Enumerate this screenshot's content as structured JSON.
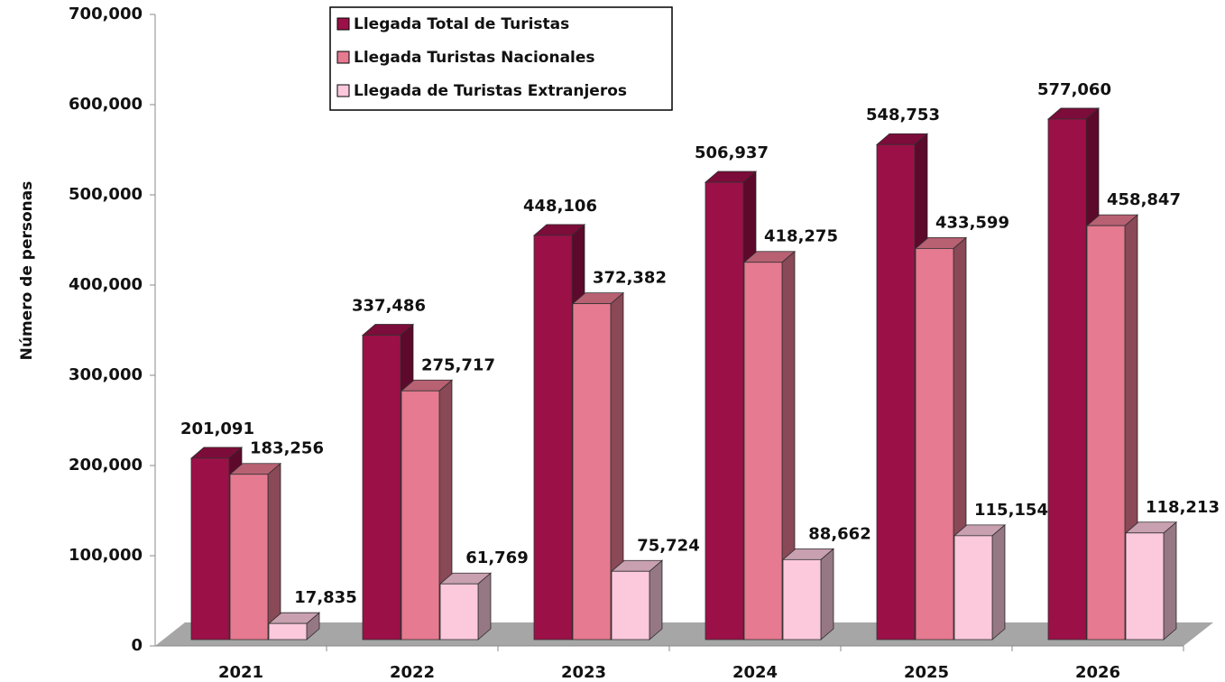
{
  "chart_data": {
    "type": "bar3d",
    "y_label": "Número de personas",
    "categories": [
      "2021",
      "2022",
      "2023",
      "2024",
      "2025",
      "2026"
    ],
    "series": [
      {
        "name": "Llegada Total de Turistas",
        "color": "#9c1048",
        "values": [
          201091,
          337486,
          448106,
          506937,
          548753,
          577060
        ],
        "value_labels": [
          "201,091",
          "337,486",
          "448,106",
          "506,937",
          "548,753",
          "577,060"
        ]
      },
      {
        "name": "Llegada  Turistas Nacionales",
        "color": "#e57a90",
        "values": [
          183256,
          275717,
          372382,
          418275,
          433599,
          458847
        ],
        "value_labels": [
          "183,256",
          "275,717",
          "372,382",
          "418,275",
          "433,599",
          "458,847"
        ]
      },
      {
        "name": "Llegada de Turistas Extranjeros",
        "color": "#fbc8dc",
        "values": [
          17835,
          61769,
          75724,
          88662,
          115154,
          118213
        ],
        "value_labels": [
          "17,835",
          "61,769",
          "75,724",
          "88,662",
          "115,154",
          "118,213"
        ]
      }
    ],
    "ylim": [
      0,
      700000
    ],
    "yticks": [
      0,
      {
        "value": 100000,
        "label": "100,000"
      },
      {
        "value": 200000,
        "label": "200,000"
      },
      {
        "value": 300000,
        "label": "300,000"
      },
      {
        "value": 400000,
        "label": "400,000"
      },
      {
        "value": 500000,
        "label": "500,000"
      },
      {
        "value": 600000,
        "label": "600,000"
      },
      {
        "value": 700000,
        "label": "700,000"
      }
    ],
    "legend": "top-left"
  }
}
